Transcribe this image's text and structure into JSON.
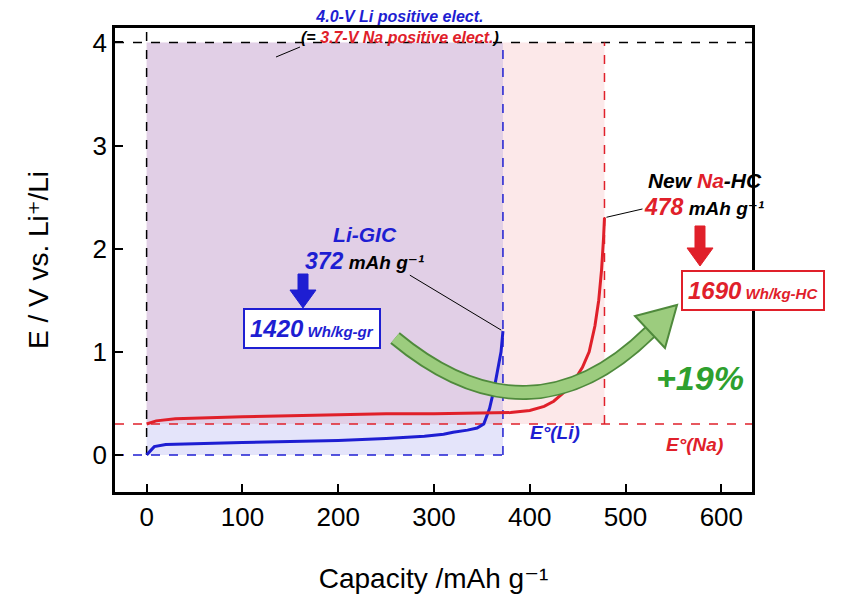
{
  "chart_data": {
    "type": "line",
    "x_label": "Capacity /mAh g⁻¹",
    "y_label": "E / V vs. Li⁺/Li",
    "xlim": [
      -33,
      632
    ],
    "ylim": [
      -0.36,
      4.14
    ],
    "xticks": [
      0,
      100,
      200,
      300,
      400,
      500,
      600
    ],
    "yticks": [
      0,
      1,
      2,
      3,
      4
    ],
    "grid": false,
    "positive_electrode": {
      "value": 4,
      "lines": [
        [
          {
            "text": "4.0-V Li positive elect.",
            "color": "#1e1ed2"
          }
        ],
        [
          {
            "text": "(= ",
            "color": "#000000"
          },
          {
            "text": "3.7-V Na positive elect.",
            "color": "#e0202a"
          },
          {
            "text": ")",
            "color": "#000000"
          }
        ]
      ]
    },
    "series": [
      {
        "label": [
          {
            "text": "Li-GIC",
            "color": "#1e1ed2"
          }
        ],
        "capacity_label": [
          {
            "text": "372",
            "color": "#1e1ed2"
          },
          {
            "text": " mAh g⁻¹",
            "color": "#000000"
          }
        ],
        "energy_label": [
          {
            "text": "1420",
            "color": "#1e1ed2"
          },
          {
            "text": " Wh/kg-gr",
            "color": "#1e1ed2"
          }
        ],
        "color": "#1e1ed2",
        "x": [
          0,
          3,
          8,
          20,
          50,
          100,
          150,
          200,
          250,
          290,
          310,
          320,
          335,
          345,
          352,
          358,
          363,
          367,
          370,
          372
        ],
        "values": [
          0,
          0.03,
          0.08,
          0.1,
          0.11,
          0.12,
          0.13,
          0.14,
          0.16,
          0.18,
          0.2,
          0.22,
          0.24,
          0.26,
          0.3,
          0.45,
          0.65,
          0.85,
          1.0,
          1.2
        ],
        "E0": 0,
        "E0_label": "E°(Li)"
      },
      {
        "label": [
          {
            "text": "New ",
            "color": "#000000"
          },
          {
            "text": "Na",
            "color": "#e0202a"
          },
          {
            "text": "-HC",
            "color": "#000000"
          }
        ],
        "capacity_label": [
          {
            "text": "478",
            "color": "#e0202a"
          },
          {
            "text": " mAh g⁻¹",
            "color": "#000000"
          }
        ],
        "energy_label": [
          {
            "text": "1690",
            "color": "#e0202a"
          },
          {
            "text": " Wh/kg-HC",
            "color": "#e0202a"
          }
        ],
        "color": "#e0202a",
        "x": [
          0,
          10,
          30,
          60,
          100,
          150,
          200,
          250,
          300,
          350,
          380,
          400,
          415,
          425,
          435,
          445,
          455,
          462,
          468,
          472,
          475,
          477,
          478
        ],
        "values": [
          0.3,
          0.33,
          0.35,
          0.36,
          0.37,
          0.38,
          0.39,
          0.4,
          0.4,
          0.41,
          0.41,
          0.43,
          0.47,
          0.52,
          0.6,
          0.7,
          0.85,
          1.0,
          1.25,
          1.5,
          1.8,
          2.1,
          2.3
        ],
        "E0": 0.3,
        "E0_label": "E°(Na)"
      }
    ],
    "gain": {
      "text": "+19%",
      "color": "#2ea02e"
    }
  }
}
